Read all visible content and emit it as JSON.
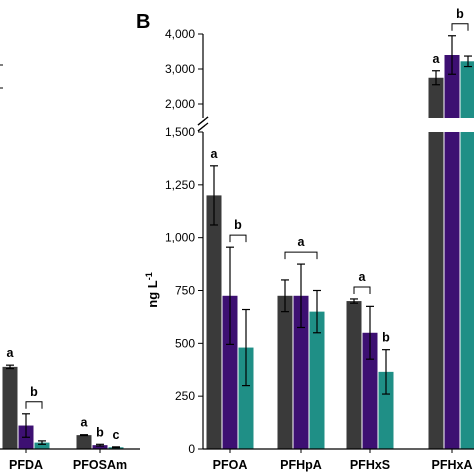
{
  "chart_data": [
    {
      "panel_label": "",
      "type": "bar",
      "partial": true,
      "categories": [
        "PFDA",
        "PFOSAm"
      ],
      "series": [
        {
          "values": [
            385,
            65
          ],
          "errors": [
            8,
            2
          ],
          "color": "#3a3a3a"
        },
        {
          "values": [
            110,
            18
          ],
          "errors": [
            55,
            4
          ],
          "color": "#3d1072"
        },
        {
          "values": [
            30,
            8
          ],
          "errors": [
            8,
            2
          ],
          "color": "#1f8f86"
        }
      ],
      "letters": [
        {
          "category": "PFDA",
          "series": 0,
          "text": "a"
        },
        {
          "category": "PFDA",
          "bracket": [
            1,
            2
          ],
          "text": "b"
        },
        {
          "category": "PFOSAm",
          "series": 0,
          "text": "a"
        },
        {
          "category": "PFOSAm",
          "series": 1,
          "text": "b"
        },
        {
          "category": "PFOSAm",
          "series": 2,
          "text": "c"
        }
      ]
    },
    {
      "panel_label": "B",
      "type": "bar",
      "ylabel": "ng L",
      "ylabel_sup": "-1",
      "broken_axis": true,
      "ylim_lower": [
        0,
        1500
      ],
      "ylim_upper": [
        2000,
        4000
      ],
      "yticks_lower": [
        "0",
        "250",
        "500",
        "750",
        "1,000",
        "1,250",
        "1,500"
      ],
      "yticks_upper": [
        "2,000",
        "3,000",
        "4,000"
      ],
      "categories": [
        "PFOA",
        "PFHpA",
        "PFHxS",
        "PFHxA"
      ],
      "series": [
        {
          "values": [
            1200,
            725,
            700,
            2750
          ],
          "errors": [
            140,
            75,
            10,
            200
          ],
          "color": "#3a3a3a"
        },
        {
          "values": [
            725,
            725,
            550,
            3400
          ],
          "errors": [
            230,
            150,
            125,
            550
          ],
          "color": "#3d1072"
        },
        {
          "values": [
            480,
            650,
            365,
            3220
          ],
          "errors": [
            180,
            100,
            105,
            150
          ],
          "color": "#1f8f86"
        }
      ],
      "letters": [
        {
          "category": "PFOA",
          "series": 0,
          "text": "a"
        },
        {
          "category": "PFOA",
          "bracket": [
            1,
            2
          ],
          "text": "b"
        },
        {
          "category": "PFHpA",
          "bracket": [
            0,
            2
          ],
          "text": "a"
        },
        {
          "category": "PFHxS",
          "bracket": [
            0,
            1
          ],
          "text": "a"
        },
        {
          "category": "PFHxS",
          "series": 2,
          "text": "b"
        },
        {
          "category": "PFHxA",
          "series": 0,
          "text": "a"
        },
        {
          "category": "PFHxA",
          "bracket": [
            1,
            2
          ],
          "text": "b"
        }
      ]
    }
  ]
}
